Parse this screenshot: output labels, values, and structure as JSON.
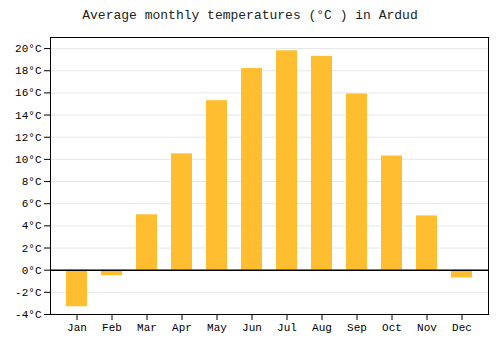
{
  "chart_data": {
    "type": "bar",
    "title": "Average monthly temperatures (°C ) in Ardud",
    "categories": [
      "Jan",
      "Feb",
      "Mar",
      "Apr",
      "May",
      "Jun",
      "Jul",
      "Aug",
      "Sep",
      "Oct",
      "Nov",
      "Dec"
    ],
    "values": [
      -3.3,
      -0.5,
      5.0,
      10.5,
      15.3,
      18.2,
      19.8,
      19.3,
      15.9,
      10.3,
      4.9,
      -0.7
    ],
    "color": "#FFBE30",
    "ylim": [
      -4,
      21
    ],
    "yticks": [
      {
        "value": -4,
        "label": "-4°C"
      },
      {
        "value": -2,
        "label": "-2°C"
      },
      {
        "value": 0,
        "label": "0°C"
      },
      {
        "value": 2,
        "label": "2°C"
      },
      {
        "value": 4,
        "label": "4°C"
      },
      {
        "value": 6,
        "label": "6°C"
      },
      {
        "value": 8,
        "label": "8°C"
      },
      {
        "value": 10,
        "label": "10°C"
      },
      {
        "value": 12,
        "label": "12°C"
      },
      {
        "value": 14,
        "label": "14°C"
      },
      {
        "value": 16,
        "label": "16°C"
      },
      {
        "value": 18,
        "label": "18°C"
      },
      {
        "value": 20,
        "label": "20°C"
      }
    ],
    "grid": true
  }
}
